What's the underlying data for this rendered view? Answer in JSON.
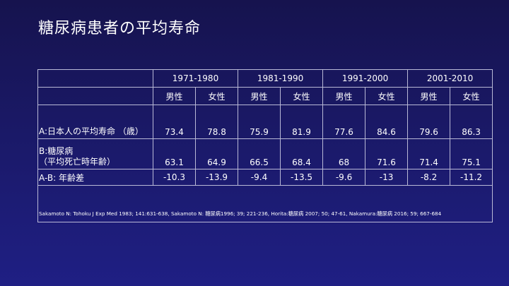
{
  "title": "糖尿病患者の平均寿命",
  "table": {
    "decades": [
      "1971-1980",
      "1981-1990",
      "1991-2000",
      "2001-2010"
    ],
    "sexes": [
      "男性",
      "女性",
      "男性",
      "女性",
      "男性",
      "女性",
      "男性",
      "女性"
    ],
    "rows": [
      {
        "label": "A:日本人の平均寿命 （歳）",
        "values": [
          "73.4",
          "78.8",
          "75.9",
          "81.9",
          "77.6",
          "84.6",
          "79.6",
          "86.3"
        ]
      },
      {
        "label_line1": "B:糖尿病",
        "label_line2": "（平均死亡時年齢）",
        "values": [
          "63.1",
          "64.9",
          "66.5",
          "68.4",
          "68",
          "71.6",
          "71.4",
          "75.1"
        ]
      },
      {
        "label": "A-B: 年齢差",
        "values": [
          "-10.3",
          "-13.9",
          "-9.4",
          "-13.5",
          "-9.6",
          "-13",
          "-8.2",
          "-11.2"
        ]
      }
    ],
    "reference": "Sakamoto N: Tohoku J Exp Med 1983; 141:631-638, Sakamoto N: 糖尿病1996; 39; 221-236, Horita:糖尿病 2007; 50; 47-61, Nakamura:糖尿病 2016; 59; 667-684"
  }
}
